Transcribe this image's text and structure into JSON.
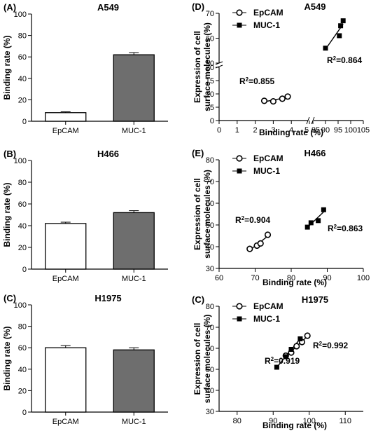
{
  "chart_data": [
    {
      "panel": "(A)",
      "title": "A549",
      "type": "bar",
      "ylabel": "Binding rate (%)",
      "ylim": [
        0,
        100
      ],
      "yticks": [
        0,
        20,
        40,
        60,
        80,
        100
      ],
      "categories": [
        "EpCAM",
        "MUC-1"
      ],
      "values": [
        8,
        62
      ],
      "errors": [
        0.8,
        2.0
      ],
      "colors": [
        "#ffffff",
        "#6e6e6e"
      ]
    },
    {
      "panel": "(B)",
      "title": "H466",
      "type": "bar",
      "ylabel": "Binding rate (%)",
      "ylim": [
        0,
        100
      ],
      "yticks": [
        0,
        20,
        40,
        60,
        80,
        100
      ],
      "categories": [
        "EpCAM",
        "MUC-1"
      ],
      "values": [
        42,
        52
      ],
      "errors": [
        1.2,
        1.8
      ],
      "colors": [
        "#ffffff",
        "#6e6e6e"
      ]
    },
    {
      "panel": "(C)",
      "title": "H1975",
      "type": "bar",
      "ylabel": "Binding rate (%)",
      "ylim": [
        0,
        100
      ],
      "yticks": [
        0,
        20,
        40,
        60,
        80,
        100
      ],
      "categories": [
        "EpCAM",
        "MUC-1"
      ],
      "values": [
        60,
        58
      ],
      "errors": [
        2.0,
        2.0
      ],
      "colors": [
        "#ffffff",
        "#6e6e6e"
      ]
    },
    {
      "panel": "(D)",
      "title": "A549",
      "type": "scatter",
      "xlabel": "Binding rate (%)",
      "ylabel": "Expression of cell surface molecules (%)",
      "broken_axes": true,
      "xticks": [
        "0",
        "1",
        "2",
        "3",
        "4",
        "5",
        "85",
        "90",
        "95",
        "100",
        "105"
      ],
      "yticks": [
        "0",
        "5",
        "10",
        "15",
        "20",
        "50",
        "60",
        "70"
      ],
      "series": [
        {
          "name": "EpCAM",
          "marker": "circle",
          "r2": "R²=0.855",
          "x": [
            2.5,
            3.0,
            3.5,
            3.8
          ],
          "y": [
            7.4,
            7.2,
            8.2,
            9.0
          ]
        },
        {
          "name": "MUC-1",
          "marker": "square",
          "r2": "R²=0.864",
          "x": [
            90.0,
            95.5,
            96.0,
            97.0
          ],
          "y": [
            56.0,
            61.0,
            65.0,
            67.0
          ]
        }
      ]
    },
    {
      "panel": "(E)",
      "title": "H466",
      "type": "scatter",
      "xlabel": "Binding rate (%)",
      "ylabel": "Expression of cell surface molecules (%)",
      "xlim": [
        60,
        100
      ],
      "ylim": [
        30,
        80
      ],
      "xticks": [
        "60",
        "70",
        "80",
        "90",
        "100"
      ],
      "yticks": [
        "30",
        "40",
        "50",
        "60",
        "70",
        "80"
      ],
      "series": [
        {
          "name": "EpCAM",
          "marker": "circle",
          "r2": "R²=0.904",
          "x": [
            68.5,
            70.5,
            71.5,
            73.5
          ],
          "y": [
            39,
            40.5,
            41.5,
            45.5
          ]
        },
        {
          "name": "MUC-1",
          "marker": "square",
          "r2": "R²=0.863",
          "x": [
            84.5,
            85.5,
            87.5,
            89.0
          ],
          "y": [
            49,
            51,
            52,
            57
          ]
        }
      ]
    },
    {
      "panel": "(C)",
      "title": "H1975",
      "type": "scatter",
      "xlabel": "Binding rate (%)",
      "ylabel": "Expression of cell surface molecules (%)",
      "xlim": [
        75,
        115
      ],
      "ylim": [
        30,
        80
      ],
      "xticks": [
        "80",
        "90",
        "100",
        "110"
      ],
      "yticks": [
        "30",
        "40",
        "50",
        "60",
        "70",
        "80"
      ],
      "series": [
        {
          "name": "EpCAM",
          "marker": "circle",
          "r2": "R²=0.919",
          "x": [
            93.5,
            95.0,
            96.5,
            98.0,
            99.5
          ],
          "y": [
            56.5,
            58.0,
            61.0,
            63.0,
            66.0
          ]
        },
        {
          "name": "MUC-1",
          "marker": "square",
          "r2": "R²=0.992",
          "x": [
            91.0,
            93.5,
            95.0,
            97.5
          ],
          "y": [
            51.0,
            56.0,
            59.5,
            64.5
          ]
        }
      ]
    }
  ]
}
